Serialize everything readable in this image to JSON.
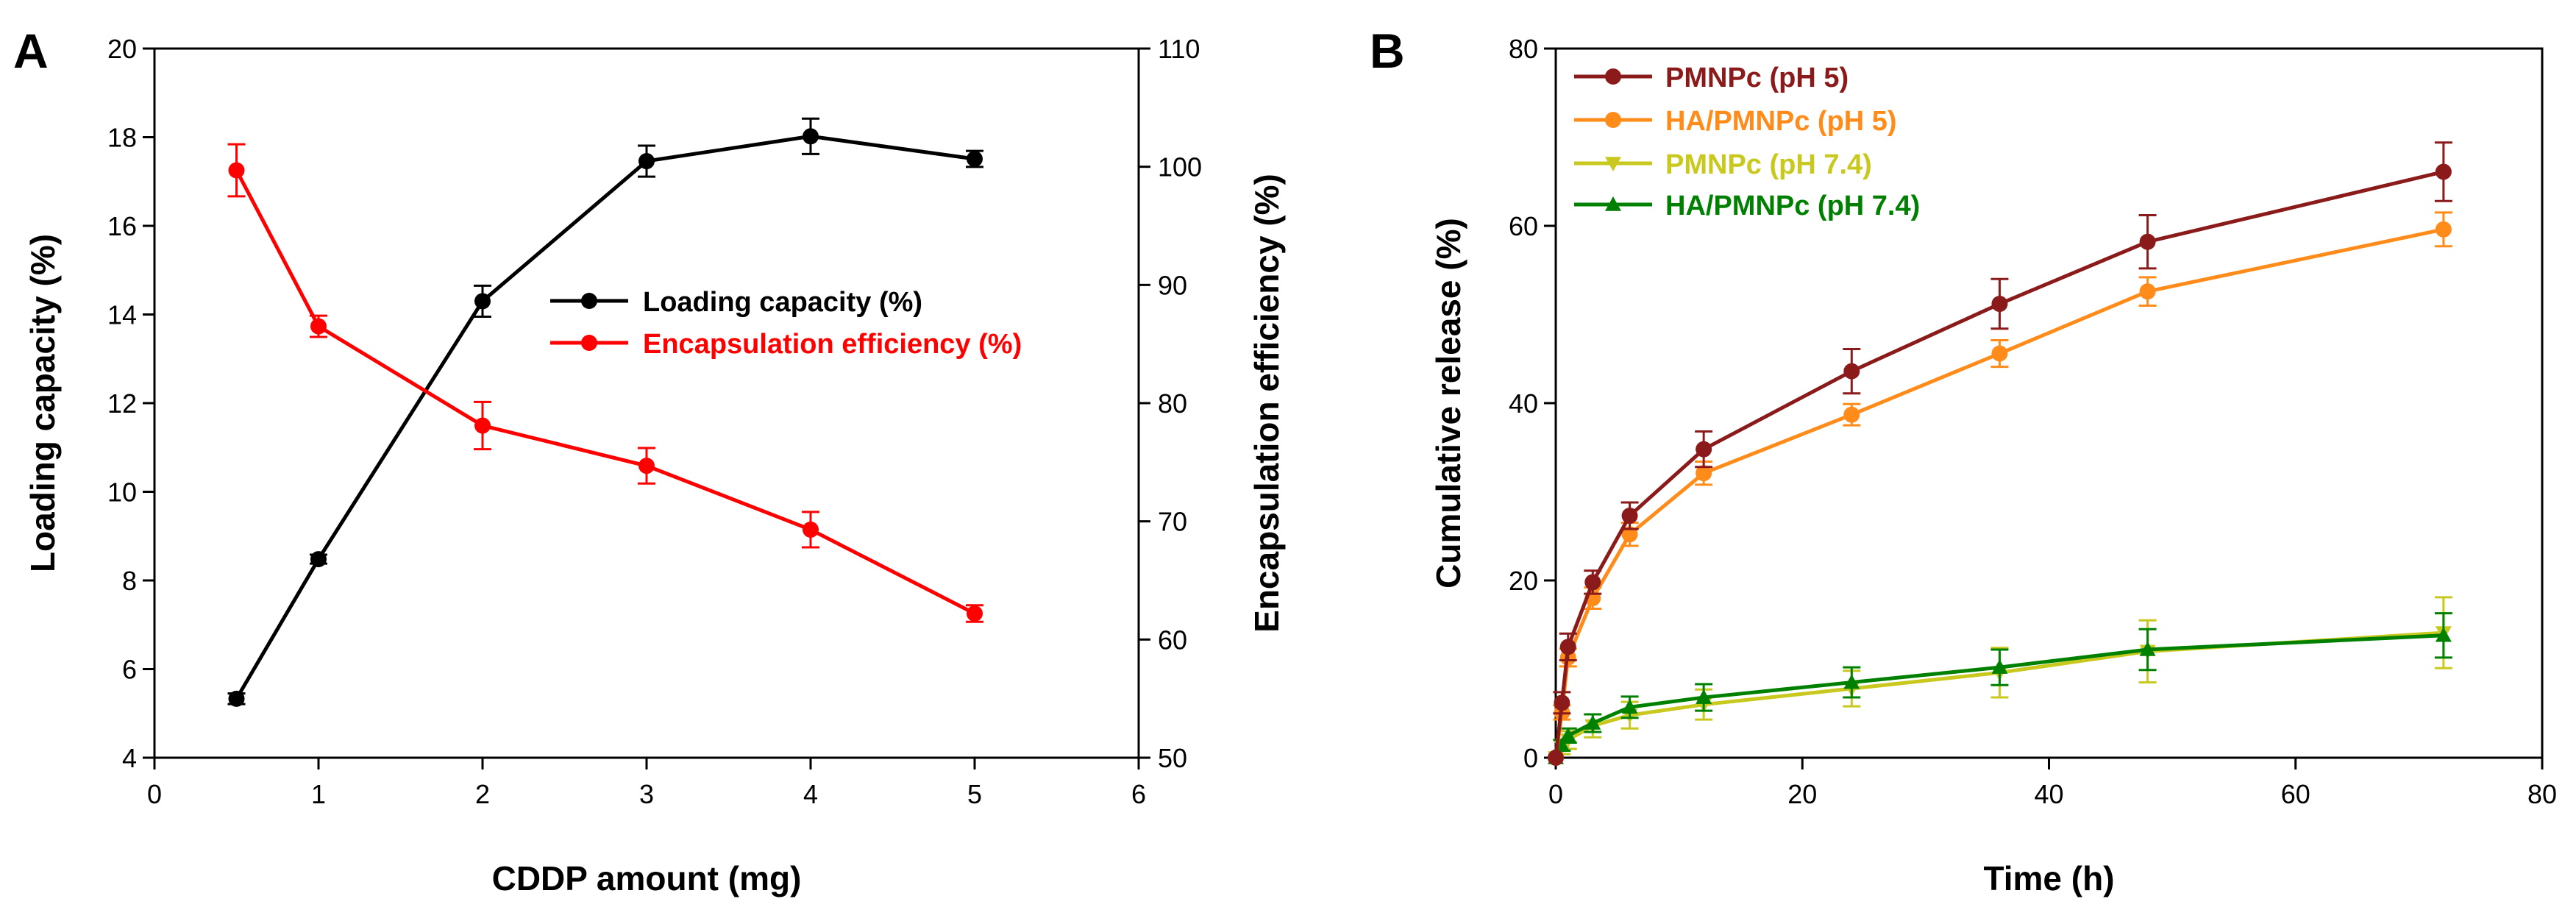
{
  "chart_data": [
    {
      "panel": "A",
      "type": "line",
      "xlabel": "CDDP amount (mg)",
      "ylabel": "Loading capacity (%)",
      "y2label": "Encapsulation efficiency (%)",
      "xlim": [
        0,
        6
      ],
      "ylim": [
        4,
        20
      ],
      "y2lim": [
        50,
        110
      ],
      "xticks": [
        0,
        1,
        2,
        3,
        4,
        5,
        6
      ],
      "yticks": [
        4,
        6,
        8,
        10,
        12,
        14,
        16,
        18,
        20
      ],
      "y2ticks": [
        50,
        60,
        70,
        80,
        90,
        100,
        110
      ],
      "legend_position": "center-right",
      "series": [
        {
          "name": "Loading capacity (%)",
          "axis": "left",
          "color": "#000000",
          "marker": "circle",
          "x": [
            0.5,
            1,
            2,
            3,
            4,
            5
          ],
          "values": [
            5.33,
            8.48,
            14.3,
            17.46,
            18.02,
            17.51
          ],
          "errors": [
            0.12,
            0.1,
            0.35,
            0.35,
            0.4,
            0.18
          ]
        },
        {
          "name": "Encapsulation efficiency (%)",
          "axis": "right",
          "color": "#ff0000",
          "marker": "circle",
          "x": [
            0.5,
            1,
            2,
            3,
            4,
            5
          ],
          "values": [
            99.7,
            86.5,
            78.1,
            74.7,
            69.3,
            62.2
          ],
          "errors": [
            2.2,
            0.9,
            2.0,
            1.5,
            1.5,
            0.7
          ]
        }
      ]
    },
    {
      "panel": "B",
      "type": "line",
      "xlabel": "Time (h)",
      "ylabel": "Cumulative release (%)",
      "xlim": [
        0,
        80
      ],
      "ylim": [
        0,
        80
      ],
      "xticks": [
        0,
        20,
        40,
        60,
        80
      ],
      "yticks": [
        0,
        20,
        40,
        60,
        80
      ],
      "legend_position": "top-left",
      "series": [
        {
          "name": "PMNPc (pH 5)",
          "color": "#8b1a1a",
          "marker": "circle",
          "x": [
            0,
            0.5,
            1,
            3,
            6,
            12,
            24,
            36,
            48,
            72
          ],
          "values": [
            0,
            6.2,
            12.5,
            19.8,
            27.3,
            34.8,
            43.6,
            51.2,
            58.2,
            66.1
          ],
          "errors": [
            0,
            1.2,
            1.5,
            1.3,
            1.5,
            2.0,
            2.5,
            2.8,
            3.0,
            3.3
          ]
        },
        {
          "name": "HA/PMNPc (pH 5)",
          "color": "#ff8c1a",
          "marker": "circle",
          "x": [
            0,
            0.5,
            1,
            3,
            6,
            12,
            24,
            36,
            48,
            72
          ],
          "values": [
            0,
            5.1,
            11.3,
            18.0,
            25.2,
            32.1,
            38.7,
            45.6,
            52.6,
            59.6
          ],
          "errors": [
            0,
            0.8,
            1.0,
            1.2,
            1.3,
            1.3,
            1.2,
            1.5,
            1.6,
            1.9
          ]
        },
        {
          "name": "PMNPc (pH 7.4)",
          "color": "#c8c81e",
          "marker": "triangle-down",
          "x": [
            0,
            0.5,
            1,
            3,
            6,
            12,
            24,
            36,
            48,
            72
          ],
          "values": [
            0,
            1.2,
            2.0,
            3.6,
            4.8,
            6.0,
            7.8,
            9.6,
            12.0,
            14.1
          ],
          "errors": [
            0,
            0.8,
            1.0,
            1.3,
            1.5,
            1.7,
            2.0,
            2.8,
            3.5,
            4.0
          ]
        },
        {
          "name": "HA/PMNPc (pH 7.4)",
          "color": "#008000",
          "marker": "triangle-up",
          "x": [
            0,
            0.5,
            1,
            3,
            6,
            12,
            24,
            36,
            48,
            72
          ],
          "values": [
            0,
            1.4,
            2.5,
            3.9,
            5.7,
            6.8,
            8.5,
            10.2,
            12.2,
            13.8
          ],
          "errors": [
            0,
            0.6,
            0.8,
            1.0,
            1.2,
            1.5,
            1.7,
            2.0,
            2.3,
            2.5
          ]
        }
      ]
    }
  ]
}
